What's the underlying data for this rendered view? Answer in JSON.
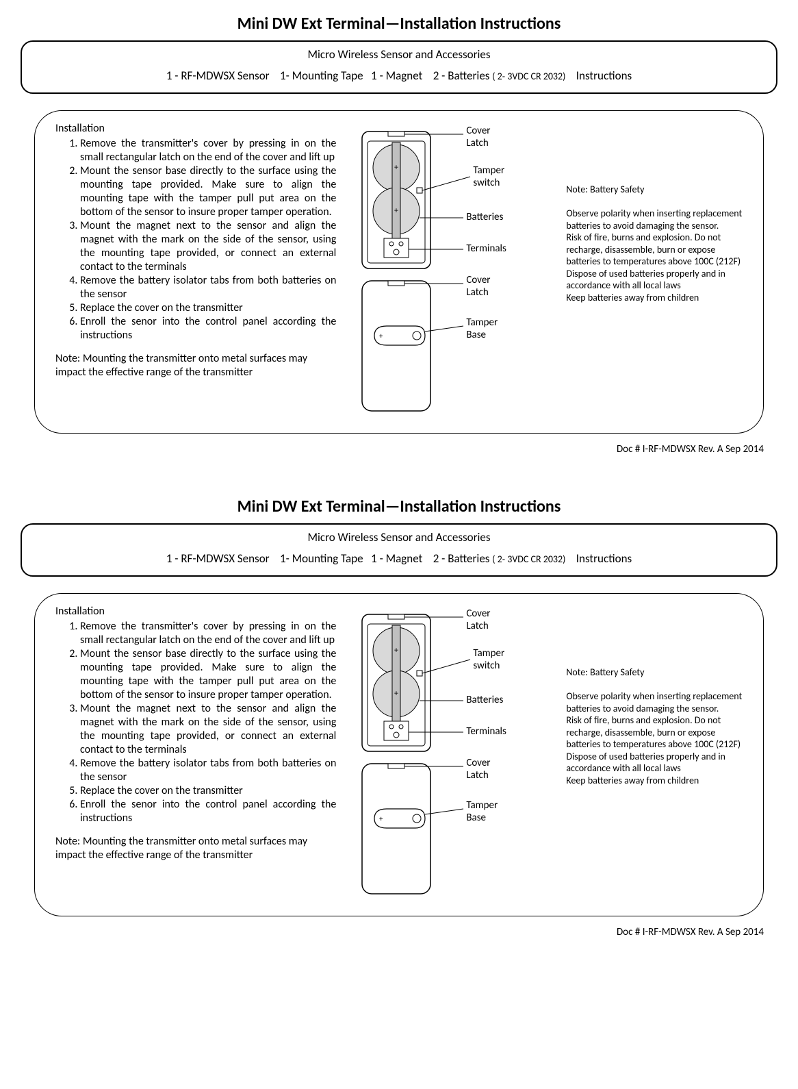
{
  "title": "Mini DW Ext Terminal—Installation Instructions",
  "header": {
    "subtitle": "Micro Wireless Sensor and Accessories",
    "items": [
      "1 - RF-MDWSX Sensor",
      "1- Mounting Tape",
      "1 - Magnet",
      "2 - Batteries",
      "( 2- 3VDC CR 2032)",
      "Instructions"
    ]
  },
  "installation": {
    "heading": "Installation",
    "steps": [
      "Remove the transmitter's cover by pressing in on the small rectangular latch on the end of the cover and lift up",
      "Mount the sensor base directly to the surface using the mounting tape provided. Make sure to align the mounting tape with the tamper pull put area on the bottom of the sensor to insure proper tamper operation.",
      "Mount the magnet next to the sensor and align the magnet with the mark on the side of the sensor, using the mounting tape provided, or connect an external contact to the terminals",
      "Remove the battery isolator tabs from both batteries on the sensor",
      "Replace the cover on the transmitter",
      "Enroll the senor into the control panel according the instructions"
    ],
    "note": "Note: Mounting the transmitter onto metal surfaces may impact the effective range of  the transmitter"
  },
  "diagram_labels": {
    "cover_latch": "Cover Latch",
    "tamper_switch": "Tamper switch",
    "batteries": "Batteries",
    "terminals": "Terminals",
    "cover_latch2": "Cover Latch",
    "tamper_base": "Tamper Base"
  },
  "safety": {
    "heading": "Note: Battery Safety",
    "p1": "Observe polarity when inserting replacement batteries to avoid damaging the sensor.",
    "p2": "Risk of fire, burns and explosion. Do not recharge, disassemble, burn or expose batteries to temperatures above 100C (212F)",
    "p3": "Dispose of used batteries properly and in accordance with all local laws",
    "p4": "Keep batteries away from children"
  },
  "docnum": "Doc # I-RF-MDWSX Rev. A Sep 2014",
  "colors": {
    "line": "#000000",
    "fill": "#ffffff",
    "shade": "#d9d9d9"
  }
}
